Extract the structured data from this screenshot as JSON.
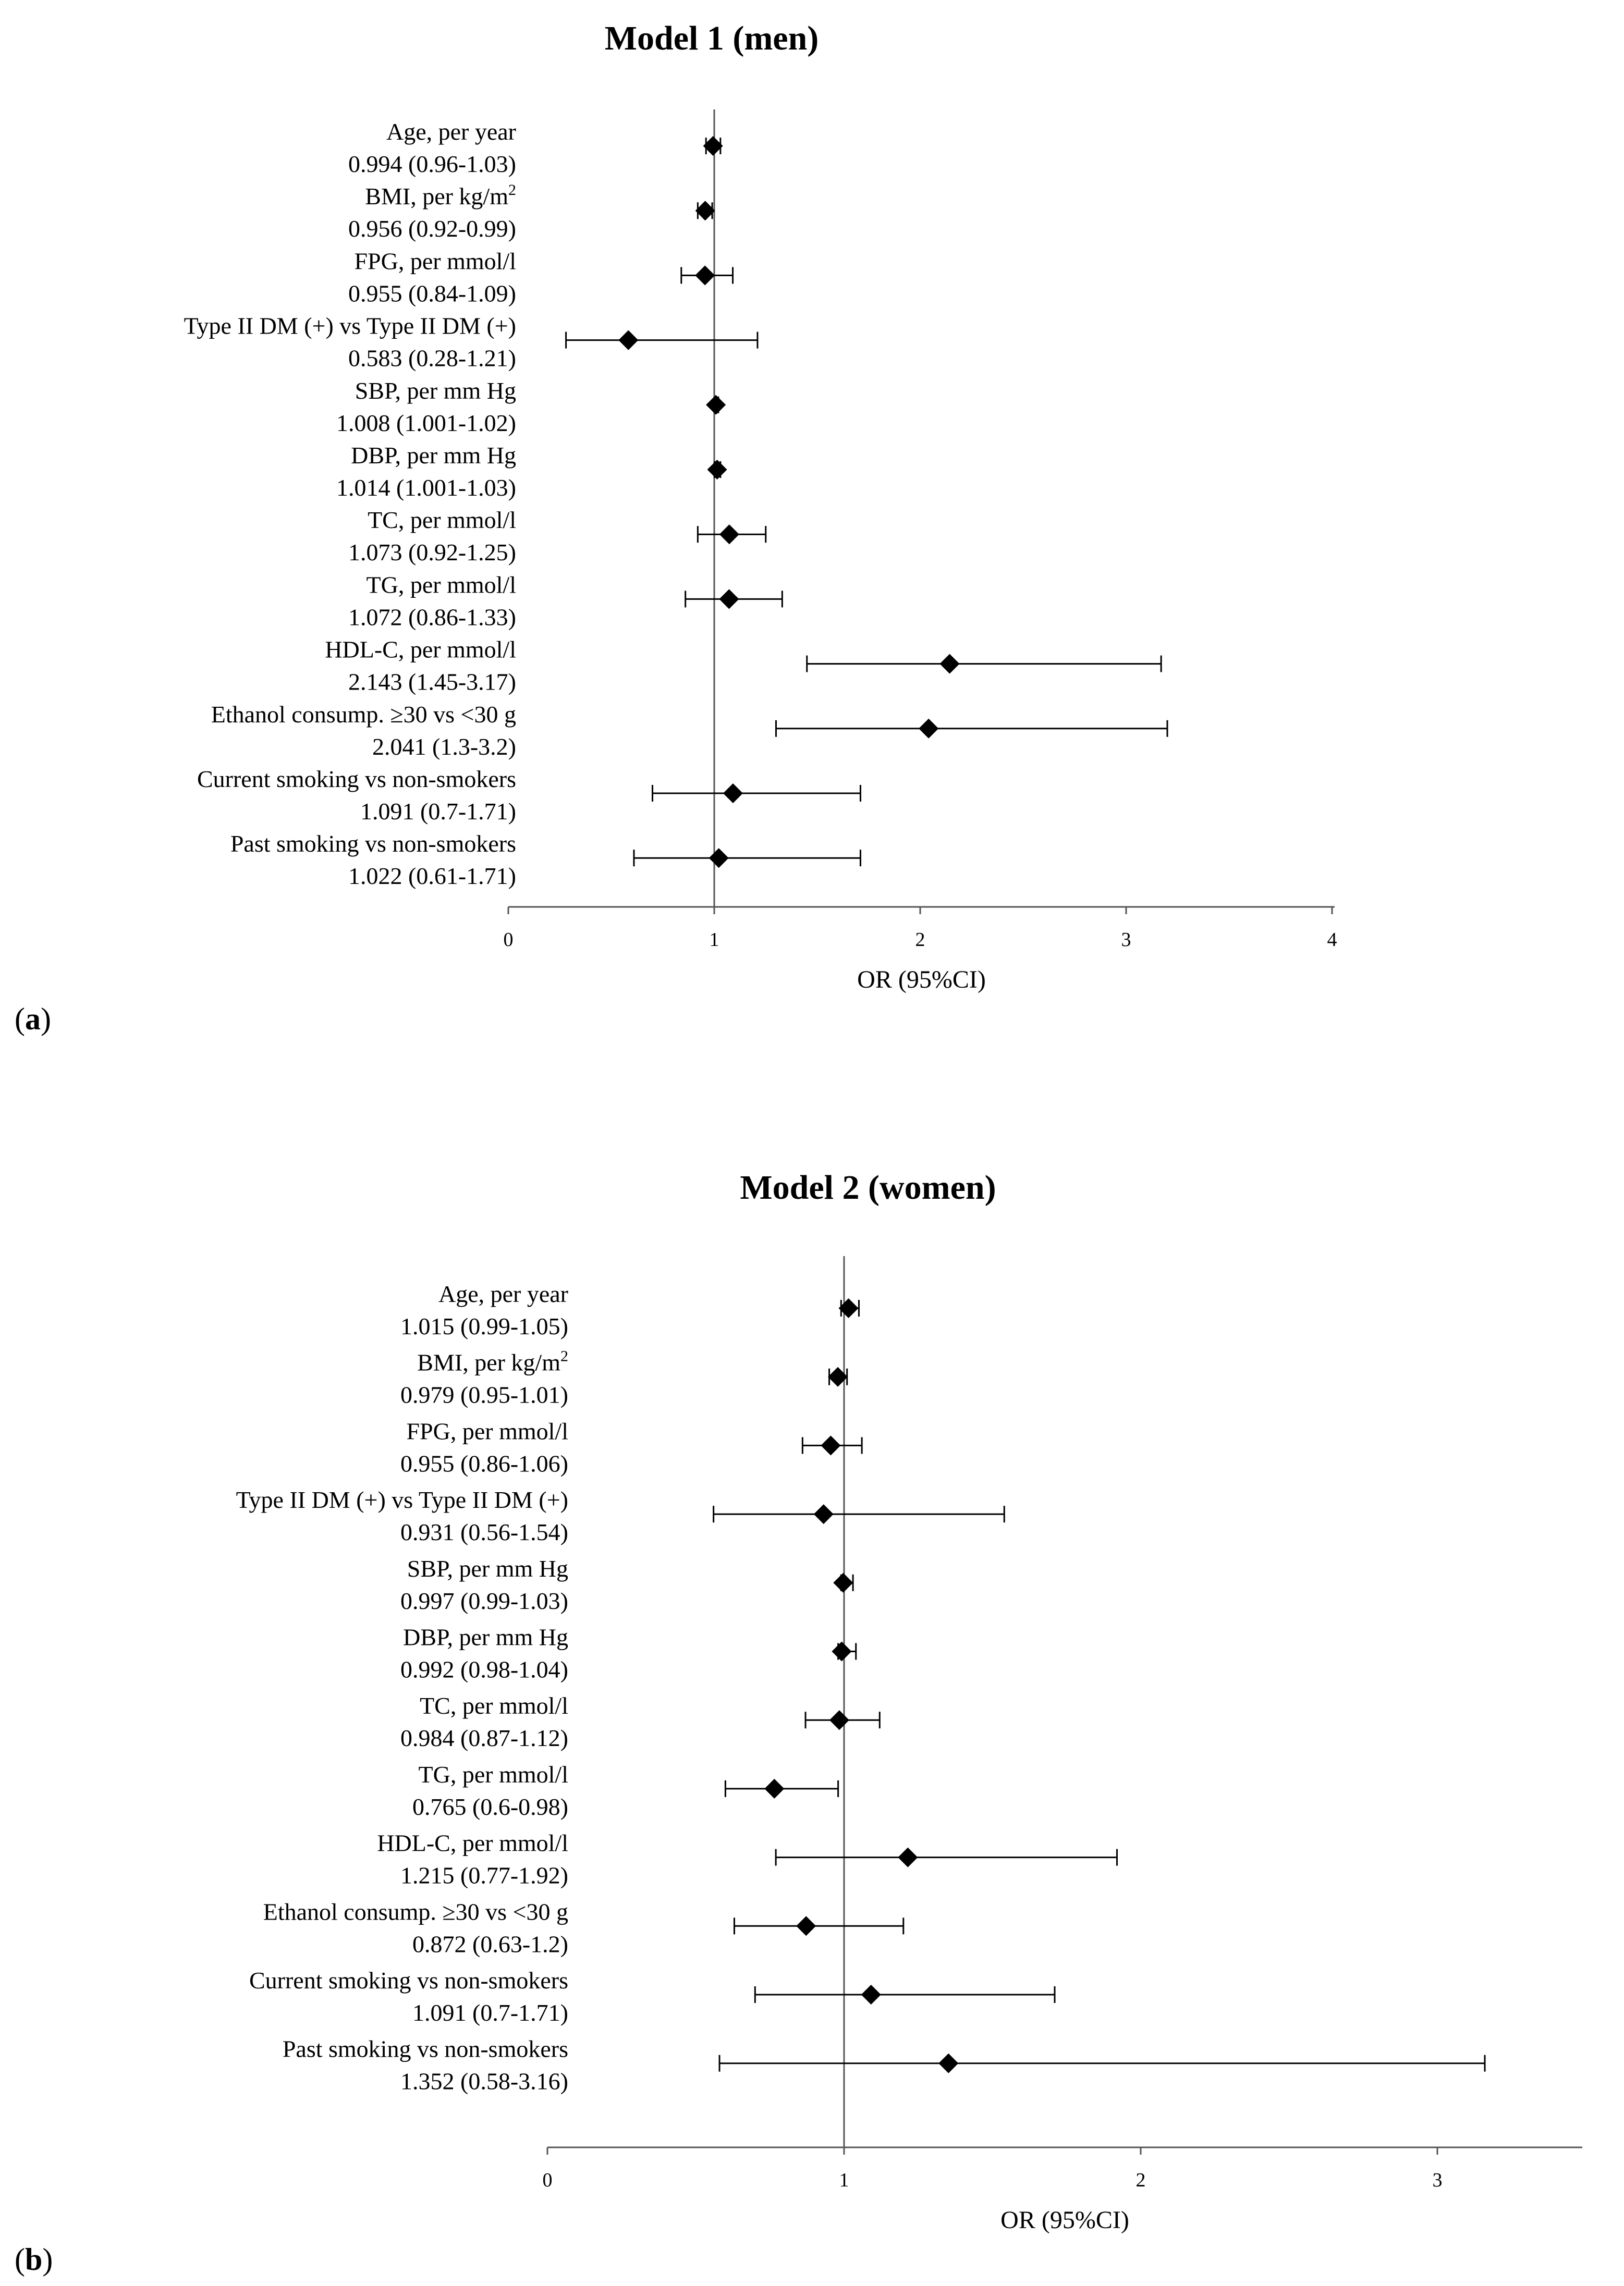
{
  "chart_data": [
    {
      "type": "forest",
      "panel_label_open": "(",
      "panel_label_letter": "a",
      "panel_label_close": ")",
      "title": "Model 1 (men)",
      "xlabel": "OR (95%CI)",
      "xlim": [
        0,
        4
      ],
      "xticks": [
        "0",
        "1",
        "2",
        "3",
        "4"
      ],
      "reference_line": 1,
      "rows": [
        {
          "label": "Age, per year",
          "label_sup": "",
          "estimate_text": "0.994 (0.96-1.03)",
          "or": 0.994,
          "lo": 0.96,
          "hi": 1.03
        },
        {
          "label": "BMI, per kg/m",
          "label_sup": "2",
          "estimate_text": "0.956 (0.92-0.99)",
          "or": 0.956,
          "lo": 0.92,
          "hi": 0.99
        },
        {
          "label": "FPG, per mmol/l",
          "label_sup": "",
          "estimate_text": "0.955 (0.84-1.09)",
          "or": 0.955,
          "lo": 0.84,
          "hi": 1.09
        },
        {
          "label": "Type II DM (+) vs Type II DM (+)",
          "label_sup": "",
          "estimate_text": "0.583 (0.28-1.21)",
          "or": 0.583,
          "lo": 0.28,
          "hi": 1.21
        },
        {
          "label": "SBP, per mm Hg",
          "label_sup": "",
          "estimate_text": "1.008 (1.001-1.02)",
          "or": 1.008,
          "lo": 1.001,
          "hi": 1.02
        },
        {
          "label": "DBP, per mm Hg",
          "label_sup": "",
          "estimate_text": "1.014 (1.001-1.03)",
          "or": 1.014,
          "lo": 1.001,
          "hi": 1.03
        },
        {
          "label": "TC, per mmol/l",
          "label_sup": "",
          "estimate_text": "1.073 (0.92-1.25)",
          "or": 1.073,
          "lo": 0.92,
          "hi": 1.25
        },
        {
          "label": "TG, per mmol/l",
          "label_sup": "",
          "estimate_text": "1.072 (0.86-1.33)",
          "or": 1.072,
          "lo": 0.86,
          "hi": 1.33
        },
        {
          "label": "HDL-C, per mmol/l",
          "label_sup": "",
          "estimate_text": "2.143 (1.45-3.17)",
          "or": 2.143,
          "lo": 1.45,
          "hi": 3.17
        },
        {
          "label": "Ethanol consump. ≥30 vs <30 g",
          "label_sup": "",
          "estimate_text": "2.041 (1.3-3.2)",
          "or": 2.041,
          "lo": 1.3,
          "hi": 3.2
        },
        {
          "label": "Current smoking vs non-smokers",
          "label_sup": "",
          "estimate_text": "1.091 (0.7-1.71)",
          "or": 1.091,
          "lo": 0.7,
          "hi": 1.71
        },
        {
          "label": "Past smoking vs non-smokers",
          "label_sup": "",
          "estimate_text": "1.022 (0.61-1.71)",
          "or": 1.022,
          "lo": 0.61,
          "hi": 1.71
        }
      ]
    },
    {
      "type": "forest",
      "panel_label_open": "(",
      "panel_label_letter": "b",
      "panel_label_close": ")",
      "title": "Model 2 (women)",
      "xlabel": "OR (95%CI)",
      "xlim": [
        0,
        3.5
      ],
      "xticks": [
        "0",
        "1",
        "2",
        "3"
      ],
      "reference_line": 1,
      "rows": [
        {
          "label": "Age, per year",
          "label_sup": "",
          "estimate_text": "1.015 (0.99-1.05)",
          "or": 1.015,
          "lo": 0.99,
          "hi": 1.05
        },
        {
          "label": "BMI, per kg/m",
          "label_sup": "2",
          "estimate_text": "0.979 (0.95-1.01)",
          "or": 0.979,
          "lo": 0.95,
          "hi": 1.01
        },
        {
          "label": "FPG, per mmol/l",
          "label_sup": "",
          "estimate_text": "0.955 (0.86-1.06)",
          "or": 0.955,
          "lo": 0.86,
          "hi": 1.06
        },
        {
          "label": "Type II DM (+) vs Type II DM (+)",
          "label_sup": "",
          "estimate_text": "0.931 (0.56-1.54)",
          "or": 0.931,
          "lo": 0.56,
          "hi": 1.54
        },
        {
          "label": "SBP, per mm Hg",
          "label_sup": "",
          "estimate_text": "0.997 (0.99-1.03)",
          "or": 0.997,
          "lo": 0.99,
          "hi": 1.03
        },
        {
          "label": "DBP, per mm Hg",
          "label_sup": "",
          "estimate_text": "0.992 (0.98-1.04)",
          "or": 0.992,
          "lo": 0.98,
          "hi": 1.04
        },
        {
          "label": "TC, per mmol/l",
          "label_sup": "",
          "estimate_text": "0.984 (0.87-1.12)",
          "or": 0.984,
          "lo": 0.87,
          "hi": 1.12
        },
        {
          "label": "TG, per mmol/l",
          "label_sup": "",
          "estimate_text": "0.765 (0.6-0.98)",
          "or": 0.765,
          "lo": 0.6,
          "hi": 0.98
        },
        {
          "label": "HDL-C, per mmol/l",
          "label_sup": "",
          "estimate_text": "1.215 (0.77-1.92)",
          "or": 1.215,
          "lo": 0.77,
          "hi": 1.92
        },
        {
          "label": "Ethanol consump. ≥30 vs <30 g",
          "label_sup": "",
          "estimate_text": "0.872 (0.63-1.2)",
          "or": 0.872,
          "lo": 0.63,
          "hi": 1.2
        },
        {
          "label": "Current smoking vs non-smokers",
          "label_sup": "",
          "estimate_text": "1.091 (0.7-1.71)",
          "or": 1.091,
          "lo": 0.7,
          "hi": 1.71
        },
        {
          "label": "Past smoking vs non-smokers",
          "label_sup": "",
          "estimate_text": "1.352 (0.58-3.16)",
          "or": 1.352,
          "lo": 0.58,
          "hi": 3.16
        }
      ]
    }
  ]
}
